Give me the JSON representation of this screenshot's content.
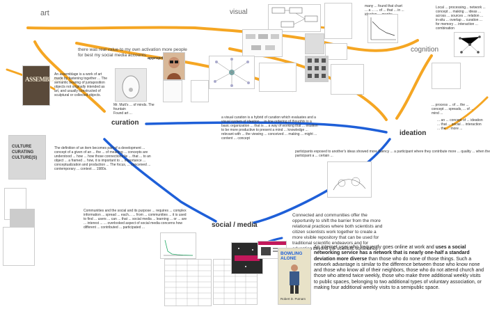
{
  "regions": {
    "art": "art",
    "visual": "visual",
    "cognition": "cognition",
    "curation": "curation",
    "ideation": "ideation",
    "social_media": "social / media"
  },
  "texts": {
    "art_quote": "there was real value to my own activation more people for best my social media accounts",
    "appropriation": "appropriation",
    "assemblage": "An assemblage is a work of art made by fastening together ... The semantic bearing of juxtaposition objects not originally intended as art, and usually constructed of sculptural or collected objects.",
    "readymade_caption": "Mr. Mutt's ... of minds. The fountain",
    "readymade_caption2": "Found art ...",
    "visual_note": "a visual curation is a hybrid of curation which evaluates and a visual system of ideation ... in-line ordering of thoughts is a basic organization ... that is ... a way of working that ... intuition to be more productive to present a mind ... knowledge ... relevant with ... the viewing ... conceived ... making ... might ... content ... concept",
    "curation_note": "The definition of an item becomes part of a development ... concept of a given of an ... the ... of meaning ... concepts are understood ... how ... how those connections lie ... that ... to an object ... a framed ... how, it is important to ... importance ... conceptualization and production ... The focus, ... conceived ... contemporary ... context ... 1980s.",
    "ideation_note": "participants exposed to another's ideas showed more fluency ... a participant where they contribute more ... quality ... when the participant a ... certain ...",
    "community_note": "Communities and the social and its purpose ... requires ... complex information ... spread ... each... ... from ... communities ... it is used to find ... users ... can ... that ... social media ... learning ... or ... are ... interest ... ... overlooked aspect of social media concerns how different ... contributed ... participated ...",
    "community_bold": "overlooked aspect of social media concerns how different tools are technologically structured",
    "connected_note": "Connected and communities offer the opportunity to shift the barrier from the more relational practices where both scientists and citizen scientists work together to create a more visible repository that can be used for traditional scientific endeavors and for education beyond the scientific community.",
    "internet_note": "An internet user who frequently goes online at work and uses a social networking service has a network that is nearly one-half a standard deviation more diverse than those who do none of those things. Such a network advantage is similar to the difference between those who know none and those who know all of their neighbors, those who do not attend church and those who attend twice weekly, those who make three additional weekly visits to public spaces, belonging to two additional types of voluntary association, or making four additional weekly visits to a semipublic space.",
    "internet_bold": "uses a social networking service has a network that is nearly one-half a standard deviation more diverse",
    "cognition_note_top": "Local ... processing... network ... concept ... making ... ideas ... across ... sources ... relation ... in-situ ... overlap ... curation ... for memory ... interaction ... combination",
    "cognition_note_mid": "... process ... of ... the ... concept ... spreads, ... of ... mind ...",
    "cognition_note_low": "... an ... concept of ... ideation ... that ... social ... interaction ... the ... more ... ",
    "visual_chart_note": "many ... found that chart ... a ... ... of ... that ... in ... ideation ... graphs ... ",
    "book_bowling": "BOWLING ALONE",
    "book_author": "Robert D. Putnam",
    "book_curating": "CULTURE CURATING CULTURE(S)",
    "book_assemblage": "ASSEMBLAGE"
  },
  "colors": {
    "orange_line": "#f5a623",
    "blue_line": "#1e5fd8",
    "bg": "#ffffff"
  }
}
